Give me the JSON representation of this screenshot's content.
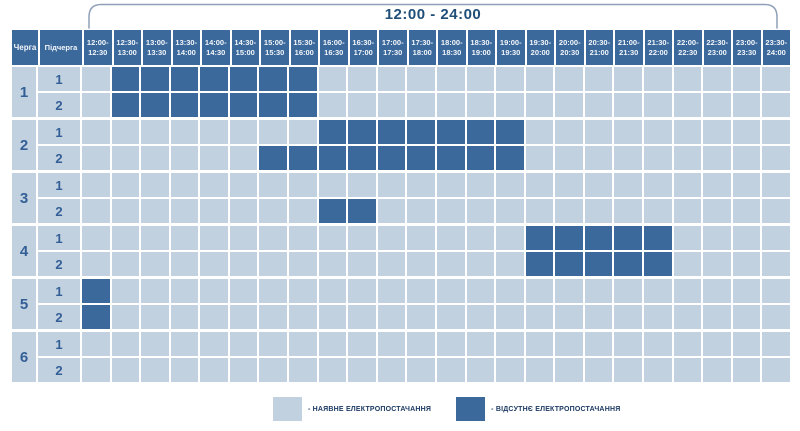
{
  "title": "12:00 - 24:00",
  "colors": {
    "power_on": "#c2d1e0",
    "power_off": "#3c699c",
    "grid": "#ffffff",
    "header_text": "#f2f6fa",
    "label_text": "#335f96",
    "title_text": "#1f4e79",
    "legend_text": "#1c3a63",
    "bracket": "#8fa0b8"
  },
  "chart_data": {
    "type": "heatmap",
    "title": "12:00 - 24:00",
    "row_header_labels": {
      "queue": "Черга",
      "subqueue": "Підчерга"
    },
    "time_slots": [
      "12:00-\n12:30",
      "12:30-\n13:00",
      "13:00-\n13:30",
      "13:30-\n14:00",
      "14:00-\n14:30",
      "14:30-\n15:00",
      "15:00-\n15:30",
      "15:30-\n16:00",
      "16:00-\n16:30",
      "16:30-\n17:00",
      "17:00-\n17:30",
      "17:30-\n18:00",
      "18:00-\n18:30",
      "18:30-\n19:00",
      "19:00-\n19:30",
      "19:30-\n20:00",
      "20:00-\n20:30",
      "20:30-\n21:00",
      "21:00-\n21:30",
      "21:30-\n22:00",
      "22:00-\n22:30",
      "22:30-\n23:00",
      "23:00-\n23:30",
      "23:30-\n24:00"
    ],
    "queues": [
      {
        "number": "1",
        "subqueues": [
          {
            "label": "1",
            "outage_slot_indices": [
              1,
              2,
              3,
              4,
              5,
              6,
              7
            ]
          },
          {
            "label": "2",
            "outage_slot_indices": [
              1,
              2,
              3,
              4,
              5,
              6,
              7
            ]
          }
        ]
      },
      {
        "number": "2",
        "subqueues": [
          {
            "label": "1",
            "outage_slot_indices": [
              8,
              9,
              10,
              11,
              12,
              13,
              14
            ]
          },
          {
            "label": "2",
            "outage_slot_indices": [
              6,
              7,
              8,
              9,
              10,
              11,
              12,
              13,
              14
            ]
          }
        ]
      },
      {
        "number": "3",
        "subqueues": [
          {
            "label": "1",
            "outage_slot_indices": []
          },
          {
            "label": "2",
            "outage_slot_indices": [
              8,
              9
            ]
          }
        ]
      },
      {
        "number": "4",
        "subqueues": [
          {
            "label": "1",
            "outage_slot_indices": [
              15,
              16,
              17,
              18,
              19
            ]
          },
          {
            "label": "2",
            "outage_slot_indices": [
              15,
              16,
              17,
              18,
              19
            ]
          }
        ]
      },
      {
        "number": "5",
        "subqueues": [
          {
            "label": "1",
            "outage_slot_indices": [
              0
            ]
          },
          {
            "label": "2",
            "outage_slot_indices": [
              0
            ]
          }
        ]
      },
      {
        "number": "6",
        "subqueues": [
          {
            "label": "1",
            "outage_slot_indices": []
          },
          {
            "label": "2",
            "outage_slot_indices": []
          }
        ]
      }
    ],
    "legend": [
      {
        "state": "on",
        "label": "- НАЯВНЕ ЕЛЕКТРОПОСТАЧАННЯ"
      },
      {
        "state": "off",
        "label": "- ВІДСУТНЄ ЕЛЕКТРОПОСТАЧАННЯ"
      }
    ]
  }
}
